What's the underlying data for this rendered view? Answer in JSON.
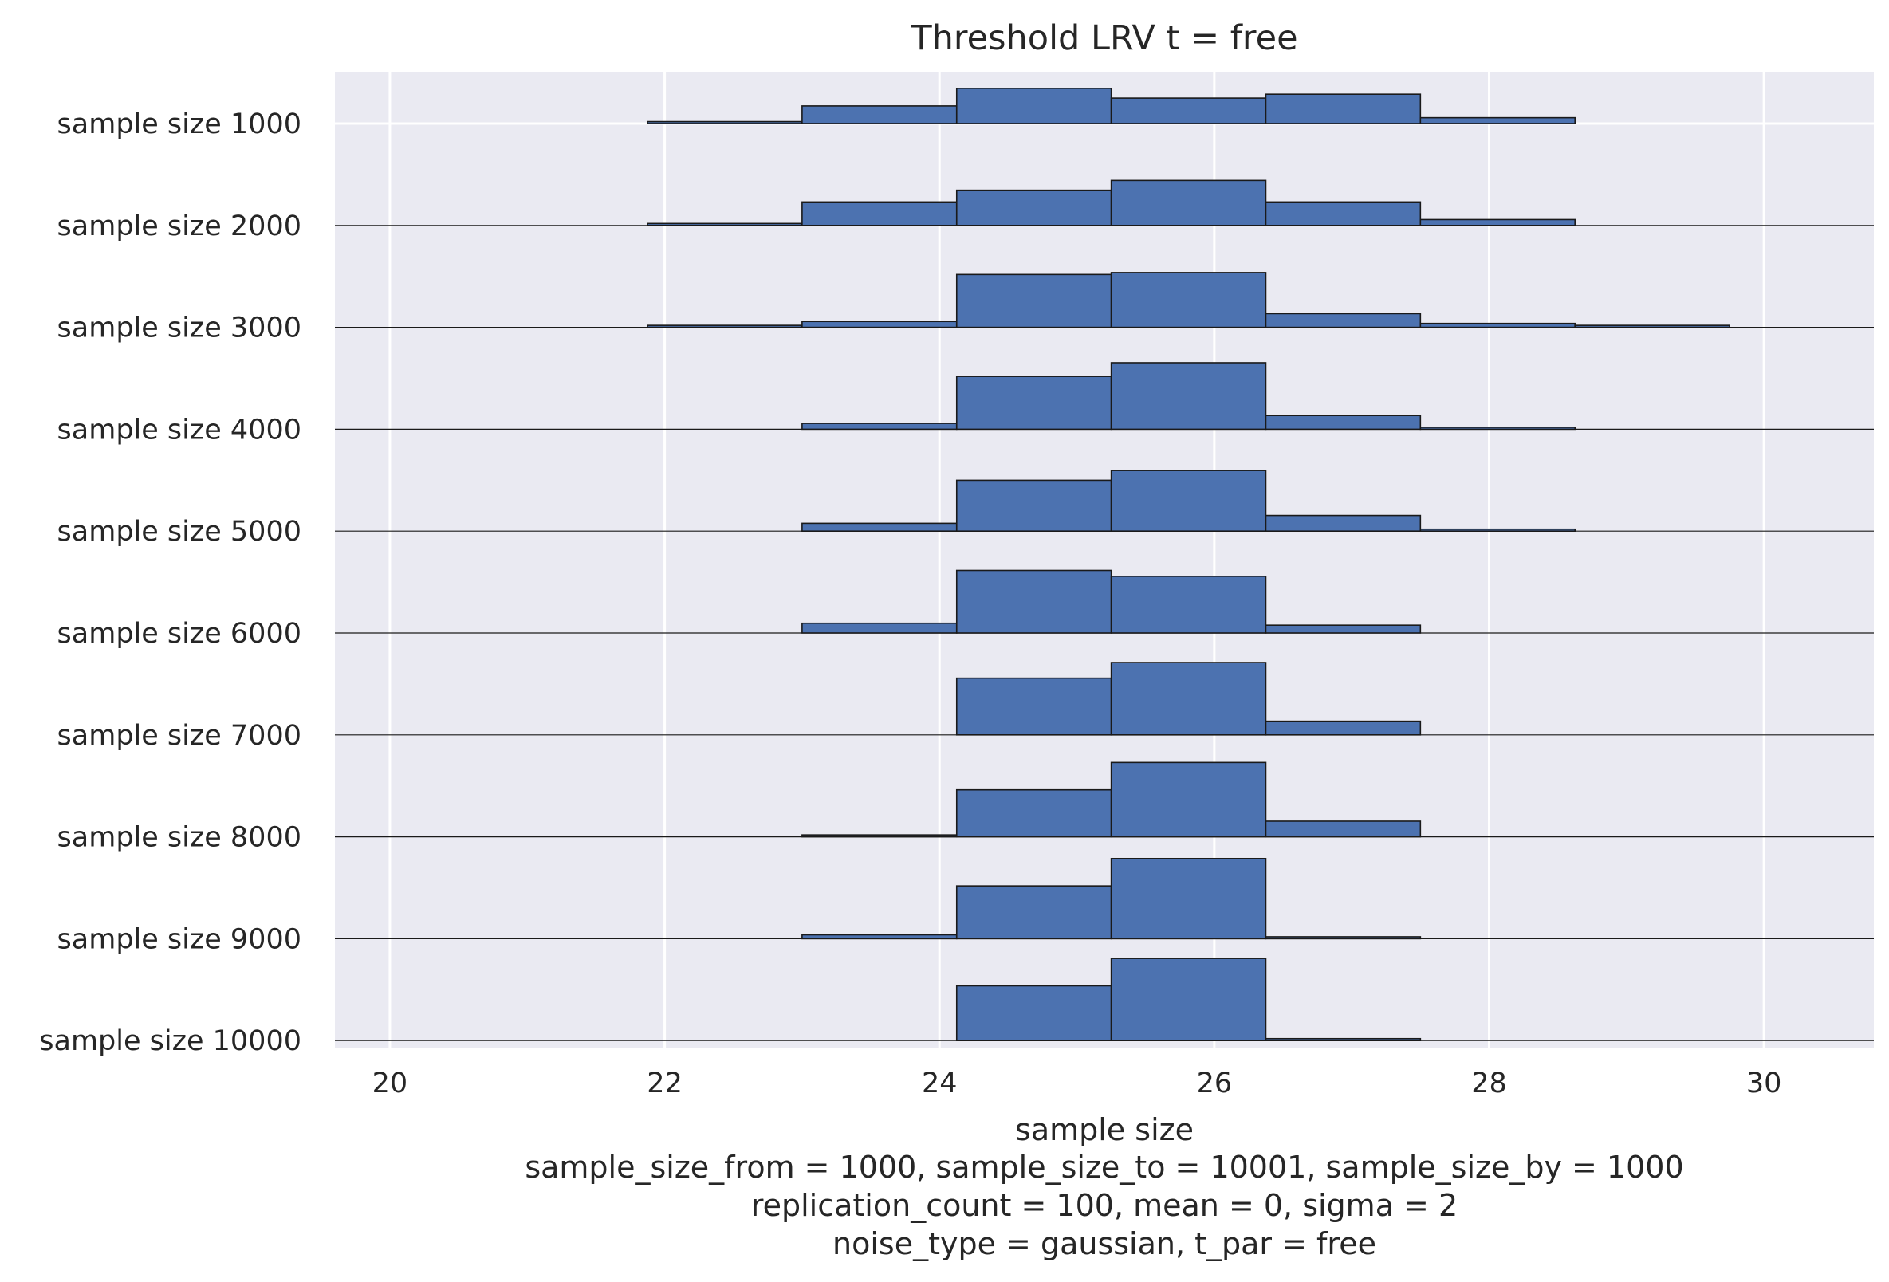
{
  "chart_data": {
    "type": "bar",
    "subtype": "ridgeline-histogram",
    "title": "Threshold LRV t = free",
    "xlabel": "sample size",
    "caption_lines": [
      "sample_size_from = 1000, sample_size_to = 10001, sample_size_by = 1000",
      "replication_count = 100, mean = 0, sigma = 2",
      "noise_type = gaussian, t_par = free"
    ],
    "xlim": [
      19.6,
      30.8
    ],
    "xticks": [
      20,
      22,
      24,
      26,
      28,
      30
    ],
    "xtick_labels": [
      "20",
      "22",
      "24",
      "26",
      "28",
      "30"
    ],
    "grid": true,
    "background_color": "#eaeaf2",
    "bar_color": "#4c72b0",
    "bin_edges": [
      20.75,
      21.875,
      23.0,
      24.125,
      25.25,
      26.375,
      27.5,
      28.625,
      29.75
    ],
    "count_scale_max": 50,
    "series": [
      {
        "name": "sample size 1000",
        "counts": [
          0,
          1,
          9,
          18,
          13,
          15,
          3,
          0
        ]
      },
      {
        "name": "sample size 2000",
        "counts": [
          0,
          1,
          12,
          18,
          23,
          12,
          3,
          0
        ]
      },
      {
        "name": "sample size 3000",
        "counts": [
          0,
          1,
          3,
          27,
          28,
          7,
          2,
          1
        ]
      },
      {
        "name": "sample size 4000",
        "counts": [
          0,
          0,
          3,
          27,
          34,
          7,
          1,
          0
        ]
      },
      {
        "name": "sample size 5000",
        "counts": [
          0,
          0,
          4,
          26,
          31,
          8,
          1,
          0
        ]
      },
      {
        "name": "sample size 6000",
        "counts": [
          0,
          0,
          5,
          32,
          29,
          4,
          0,
          0
        ]
      },
      {
        "name": "sample size 7000",
        "counts": [
          0,
          0,
          0,
          29,
          37,
          7,
          0,
          0
        ]
      },
      {
        "name": "sample size 8000",
        "counts": [
          0,
          0,
          1,
          24,
          38,
          8,
          0,
          0
        ]
      },
      {
        "name": "sample size 9000",
        "counts": [
          0,
          0,
          2,
          27,
          41,
          1,
          0,
          0
        ]
      },
      {
        "name": "sample size 10000",
        "counts": [
          0,
          0,
          0,
          28,
          42,
          1,
          0,
          0
        ]
      }
    ]
  }
}
